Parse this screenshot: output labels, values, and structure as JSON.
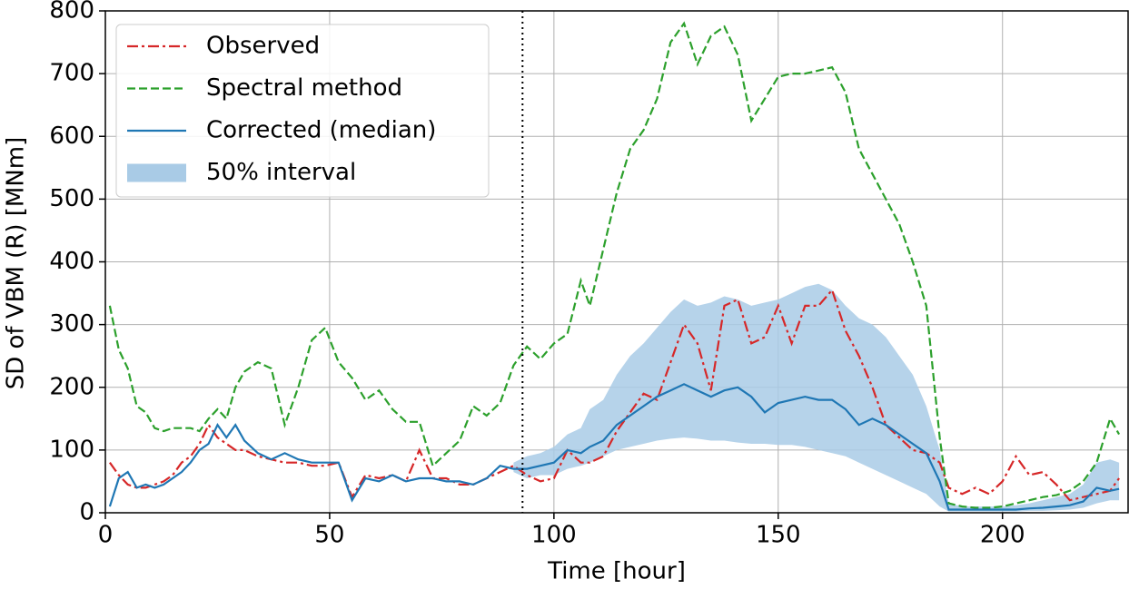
{
  "chart_data": {
    "type": "line",
    "xlabel": "Time [hour]",
    "ylabel": "SD of VBM (R) [MNm]",
    "x": [
      1,
      3,
      5,
      7,
      9,
      11,
      13,
      15,
      17,
      19,
      21,
      23,
      25,
      27,
      29,
      31,
      34,
      37,
      40,
      43,
      46,
      49,
      52,
      55,
      58,
      61,
      64,
      67,
      70,
      73,
      76,
      79,
      82,
      85,
      88,
      91,
      94,
      97,
      100,
      103,
      106,
      108,
      111,
      114,
      117,
      120,
      123,
      126,
      129,
      132,
      135,
      138,
      141,
      144,
      147,
      150,
      153,
      156,
      159,
      162,
      165,
      168,
      171,
      174,
      177,
      180,
      183,
      186,
      188,
      191,
      194,
      197,
      200,
      203,
      206,
      209,
      212,
      215,
      218,
      221,
      224,
      226
    ],
    "series": [
      {
        "name": "Observed",
        "color": "#d62728",
        "style": "dashdot",
        "values": [
          80,
          60,
          45,
          40,
          40,
          45,
          50,
          60,
          80,
          90,
          110,
          140,
          120,
          110,
          100,
          100,
          90,
          85,
          80,
          80,
          75,
          75,
          80,
          25,
          60,
          55,
          60,
          50,
          100,
          55,
          55,
          45,
          45,
          55,
          65,
          75,
          60,
          50,
          55,
          100,
          80,
          80,
          90,
          130,
          160,
          190,
          180,
          240,
          300,
          270,
          195,
          330,
          340,
          270,
          280,
          330,
          270,
          330,
          330,
          355,
          290,
          250,
          200,
          140,
          120,
          100,
          95,
          80,
          40,
          30,
          40,
          30,
          50,
          90,
          60,
          65,
          45,
          20,
          25,
          30,
          35,
          55
        ]
      },
      {
        "name": "Spectral method",
        "color": "#2ca02c",
        "style": "dashed",
        "values": [
          330,
          260,
          230,
          170,
          160,
          135,
          130,
          135,
          135,
          135,
          130,
          150,
          165,
          150,
          200,
          225,
          240,
          230,
          140,
          200,
          275,
          295,
          240,
          215,
          180,
          195,
          165,
          145,
          145,
          75,
          95,
          115,
          170,
          155,
          175,
          235,
          265,
          245,
          270,
          285,
          370,
          330,
          420,
          510,
          580,
          610,
          660,
          750,
          780,
          715,
          760,
          775,
          730,
          625,
          660,
          695,
          700,
          700,
          705,
          710,
          670,
          580,
          540,
          500,
          460,
          400,
          330,
          120,
          15,
          10,
          8,
          8,
          10,
          15,
          20,
          25,
          28,
          35,
          50,
          80,
          150,
          125
        ]
      },
      {
        "name": "Corrected (median)",
        "color": "#1f77b4",
        "style": "solid",
        "values": [
          10,
          55,
          65,
          40,
          45,
          40,
          45,
          55,
          65,
          80,
          100,
          110,
          140,
          120,
          140,
          115,
          95,
          85,
          95,
          85,
          80,
          80,
          80,
          20,
          55,
          50,
          60,
          50,
          55,
          55,
          50,
          50,
          45,
          55,
          75,
          70,
          70,
          75,
          80,
          100,
          95,
          105,
          115,
          140,
          155,
          170,
          185,
          195,
          205,
          195,
          185,
          195,
          200,
          185,
          160,
          175,
          180,
          185,
          180,
          180,
          165,
          140,
          150,
          140,
          125,
          110,
          95,
          50,
          5,
          5,
          5,
          5,
          5,
          5,
          7,
          8,
          10,
          12,
          18,
          40,
          35,
          38
        ]
      },
      {
        "name": "50% interval",
        "color": "#a9cbe6",
        "style": "band",
        "lower": [
          null,
          null,
          null,
          null,
          null,
          null,
          null,
          null,
          null,
          null,
          null,
          null,
          null,
          null,
          null,
          null,
          null,
          null,
          null,
          null,
          null,
          null,
          null,
          null,
          null,
          null,
          null,
          null,
          null,
          null,
          null,
          null,
          null,
          null,
          null,
          65,
          55,
          60,
          60,
          70,
          75,
          80,
          90,
          100,
          105,
          110,
          115,
          118,
          120,
          118,
          115,
          115,
          112,
          110,
          110,
          108,
          108,
          105,
          100,
          95,
          90,
          80,
          70,
          60,
          50,
          40,
          30,
          10,
          2,
          2,
          2,
          2,
          2,
          2,
          3,
          3,
          4,
          5,
          8,
          15,
          20,
          20
        ],
        "upper": [
          null,
          null,
          null,
          null,
          null,
          null,
          null,
          null,
          null,
          null,
          null,
          null,
          null,
          null,
          null,
          null,
          null,
          null,
          null,
          null,
          null,
          null,
          null,
          null,
          null,
          null,
          null,
          null,
          null,
          null,
          null,
          null,
          null,
          null,
          null,
          80,
          90,
          95,
          105,
          125,
          135,
          165,
          180,
          220,
          250,
          270,
          295,
          320,
          340,
          330,
          335,
          345,
          340,
          330,
          335,
          340,
          350,
          360,
          365,
          355,
          330,
          310,
          300,
          280,
          250,
          220,
          170,
          100,
          15,
          10,
          10,
          10,
          10,
          12,
          15,
          20,
          25,
          30,
          45,
          80,
          85,
          80
        ]
      }
    ],
    "vline": 93,
    "xlim": [
      0,
      228
    ],
    "xticks": [
      0,
      50,
      100,
      150,
      200
    ],
    "ylim": [
      0,
      800
    ],
    "yticks": [
      0,
      100,
      200,
      300,
      400,
      500,
      600,
      700,
      800
    ],
    "grid": true,
    "legend": "upper left"
  }
}
